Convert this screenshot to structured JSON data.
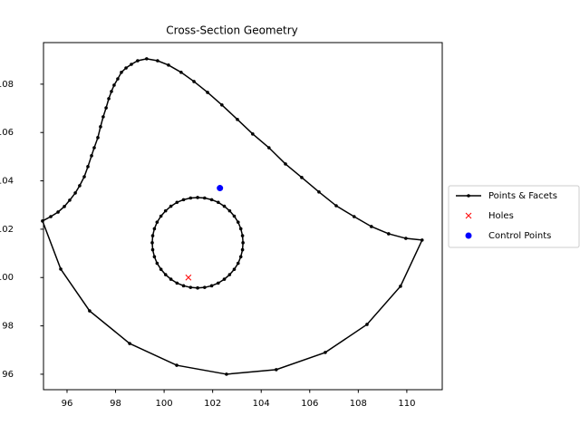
{
  "chart_data": {
    "type": "line",
    "title": "Cross-Section Geometry",
    "xlim": [
      95.03,
      111.46
    ],
    "ylim": [
      95.36,
      109.72
    ],
    "xticks": [
      96,
      98,
      100,
      102,
      104,
      106,
      108,
      110
    ],
    "yticks": [
      96,
      98,
      100,
      102,
      104,
      106,
      108
    ],
    "legend": "right",
    "series": [
      {
        "name": "Points & Facets",
        "color": "#000000",
        "marker": "dot",
        "polygons": [
          {
            "x": [
              94.99,
              95.33,
              95.63,
              95.89,
              96.11,
              96.34,
              96.52,
              96.71,
              96.86,
              97.01,
              97.12,
              97.27,
              97.38,
              97.49,
              97.61,
              97.72,
              97.83,
              97.94,
              98.09,
              98.24,
              98.43,
              98.65,
              98.91,
              99.28,
              99.73,
              100.18,
              100.7,
              101.23,
              101.79,
              102.38,
              103.02,
              103.65,
              104.32,
              105.0,
              105.67,
              106.38,
              107.09,
              107.83,
              108.54,
              109.25,
              109.96,
              110.63,
              109.74,
              108.36,
              106.64,
              104.62,
              102.57,
              100.52,
              98.58,
              96.93,
              95.74
            ],
            "y": [
              102.34,
              102.52,
              102.71,
              102.94,
              103.2,
              103.5,
              103.8,
              104.17,
              104.59,
              105.04,
              105.37,
              105.79,
              106.24,
              106.65,
              107.02,
              107.4,
              107.7,
              107.96,
              108.22,
              108.49,
              108.67,
              108.82,
              108.97,
              109.05,
              108.97,
              108.79,
              108.49,
              108.11,
              107.66,
              107.14,
              106.54,
              105.94,
              105.37,
              104.7,
              104.14,
              103.54,
              102.97,
              102.52,
              102.11,
              101.81,
              101.62,
              101.55,
              99.64,
              98.06,
              96.9,
              96.19,
              96.0,
              96.37,
              97.27,
              98.62,
              100.35
            ]
          },
          {
            "x": [
              103.25,
              103.23,
              103.16,
              103.05,
              102.89,
              102.7,
              102.48,
              102.23,
              101.96,
              101.67,
              101.38,
              101.09,
              100.8,
              100.53,
              100.28,
              100.06,
              99.87,
              99.71,
              99.6,
              99.53,
              99.51,
              99.53,
              99.6,
              99.71,
              99.87,
              100.06,
              100.28,
              100.53,
              100.8,
              101.09,
              101.38,
              101.67,
              101.96,
              102.23,
              102.48,
              102.7,
              102.89,
              103.05,
              103.16,
              103.23
            ],
            "y": [
              101.44,
              101.73,
              102.02,
              102.29,
              102.54,
              102.76,
              102.95,
              103.11,
              103.22,
              103.29,
              103.31,
              103.29,
              103.22,
              103.11,
              102.95,
              102.76,
              102.54,
              102.29,
              102.02,
              101.73,
              101.44,
              101.15,
              100.86,
              100.59,
              100.34,
              100.12,
              99.93,
              99.77,
              99.66,
              99.59,
              99.57,
              99.59,
              99.66,
              99.77,
              99.93,
              100.12,
              100.34,
              100.59,
              100.86,
              101.15
            ]
          }
        ]
      },
      {
        "name": "Holes",
        "color": "#ff0000",
        "marker": "x",
        "x": [
          101.0
        ],
        "y": [
          100.0
        ]
      },
      {
        "name": "Control Points",
        "color": "#0000ff",
        "marker": "o",
        "x": [
          102.3
        ],
        "y": [
          103.7
        ]
      }
    ]
  }
}
